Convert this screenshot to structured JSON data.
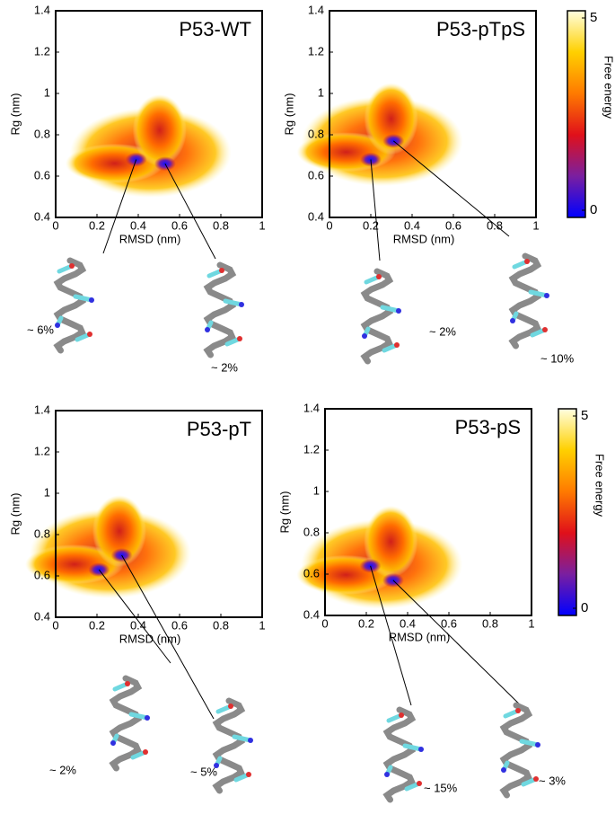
{
  "chart_data": [
    {
      "type": "density",
      "title": "P53-WT",
      "xlabel": "RMSD (nm)",
      "ylabel": "Rg (nm)",
      "xlim": [
        0,
        1
      ],
      "ylim": [
        0.4,
        1.4
      ],
      "xticks": [
        0,
        0.2,
        0.4,
        0.6,
        0.8,
        1
      ],
      "yticks": [
        0.4,
        0.6,
        0.8,
        1,
        1.2,
        1.4
      ],
      "minima": [
        {
          "x": 0.39,
          "y": 0.68,
          "label": "~ 6%"
        },
        {
          "x": 0.53,
          "y": 0.66,
          "label": "~ 2%"
        }
      ]
    },
    {
      "type": "density",
      "title": "P53-pTpS",
      "xlabel": "RMSD (nm)",
      "ylabel": "Rg (nm)",
      "xlim": [
        0,
        1
      ],
      "ylim": [
        0.4,
        1.4
      ],
      "xticks": [
        0,
        0.2,
        0.4,
        0.6,
        0.8,
        1
      ],
      "yticks": [
        0.4,
        0.6,
        0.8,
        1,
        1.2,
        1.4
      ],
      "minima": [
        {
          "x": 0.2,
          "y": 0.68,
          "label": "~ 2%"
        },
        {
          "x": 0.31,
          "y": 0.77,
          "label": "~ 10%"
        }
      ],
      "colorbar": {
        "label": "Free energy",
        "ticks": [
          0,
          5
        ],
        "colors": [
          "#0000ff",
          "#7a1fa0",
          "#e0101a",
          "#ff7a00",
          "#ffd000",
          "#ffffe0"
        ]
      }
    },
    {
      "type": "density",
      "title": "P53-pT",
      "xlabel": "RMSD (nm)",
      "ylabel": "Rg (nm)",
      "xlim": [
        0,
        1
      ],
      "ylim": [
        0.4,
        1.4
      ],
      "xticks": [
        0,
        0.2,
        0.4,
        0.6,
        0.8,
        1
      ],
      "yticks": [
        0.4,
        0.6,
        0.8,
        1,
        1.2,
        1.4
      ],
      "minima": [
        {
          "x": 0.21,
          "y": 0.63,
          "label": "~ 2%"
        },
        {
          "x": 0.32,
          "y": 0.7,
          "label": "~ 5%"
        }
      ]
    },
    {
      "type": "density",
      "title": "P53-pS",
      "xlabel": "RMSD (nm)",
      "ylabel": "Rg (nm)",
      "xlim": [
        0,
        1
      ],
      "ylim": [
        0.4,
        1.4
      ],
      "xticks": [
        0,
        0.2,
        0.4,
        0.6,
        0.8,
        1
      ],
      "yticks": [
        0.4,
        0.6,
        0.8,
        1,
        1.2,
        1.4
      ],
      "minima": [
        {
          "x": 0.22,
          "y": 0.64,
          "label": "~ 15%"
        },
        {
          "x": 0.33,
          "y": 0.57,
          "label": "~ 3%"
        }
      ],
      "colorbar": {
        "label": "Free energy",
        "ticks": [
          0,
          5
        ],
        "colors": [
          "#0000ff",
          "#7a1fa0",
          "#e0101a",
          "#ff7a00",
          "#ffd000",
          "#ffffe0"
        ]
      }
    }
  ]
}
